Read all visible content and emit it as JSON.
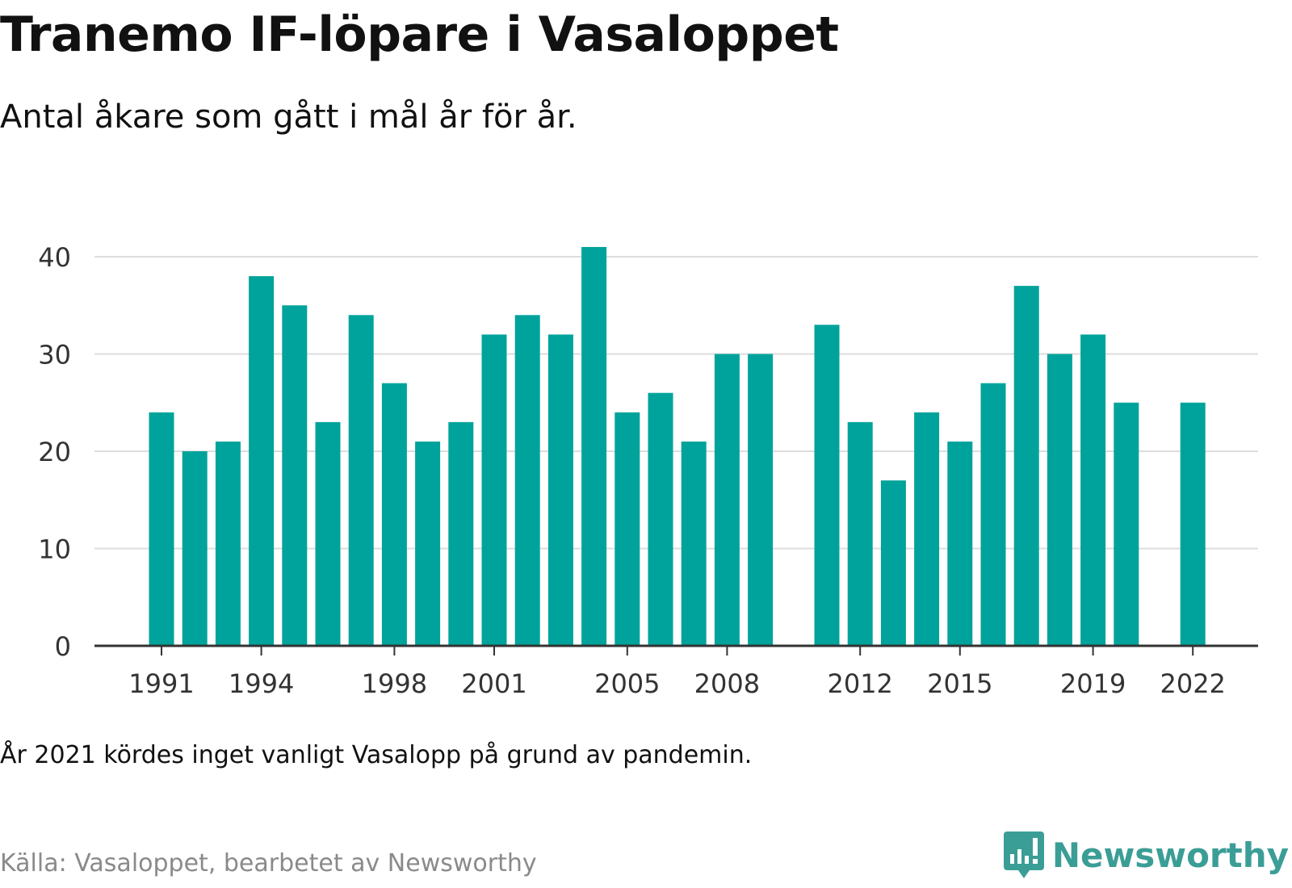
{
  "title": "Tranemo IF-löpare i Vasaloppet",
  "subtitle": "Antal åkare som gått i mål år för år.",
  "note": "År 2021 kördes inget vanligt Vasalopp på grund av pandemin.",
  "source": "Källa: Vasaloppet, bearbetet av Newsworthy",
  "brand": {
    "name": "Newsworthy",
    "icon": "newsworthy-logo-icon",
    "color": "#3b9e96"
  },
  "colors": {
    "bar": "#00a39b",
    "grid": "#dddddd",
    "axis": "#333333",
    "tick_label": "#333333"
  },
  "chart_data": {
    "type": "bar",
    "x": [
      1991,
      1992,
      1993,
      1994,
      1995,
      1996,
      1997,
      1998,
      1999,
      2000,
      2001,
      2002,
      2003,
      2004,
      2005,
      2006,
      2007,
      2008,
      2009,
      2010,
      2011,
      2012,
      2013,
      2014,
      2015,
      2016,
      2017,
      2018,
      2019,
      2020,
      2021,
      2022
    ],
    "values": [
      24,
      20,
      21,
      38,
      35,
      23,
      34,
      27,
      21,
      23,
      32,
      34,
      32,
      41,
      24,
      26,
      21,
      30,
      30,
      null,
      33,
      23,
      17,
      24,
      21,
      27,
      37,
      30,
      32,
      25,
      null,
      25
    ],
    "x_tick_labels": [
      1991,
      1994,
      1998,
      2001,
      2005,
      2008,
      2012,
      2015,
      2019,
      2022
    ],
    "y_ticks": [
      0,
      10,
      20,
      30,
      40
    ],
    "ylim": [
      0,
      41
    ],
    "xlabel": "",
    "ylabel": "",
    "grid": "horizontal",
    "legend": "none"
  }
}
